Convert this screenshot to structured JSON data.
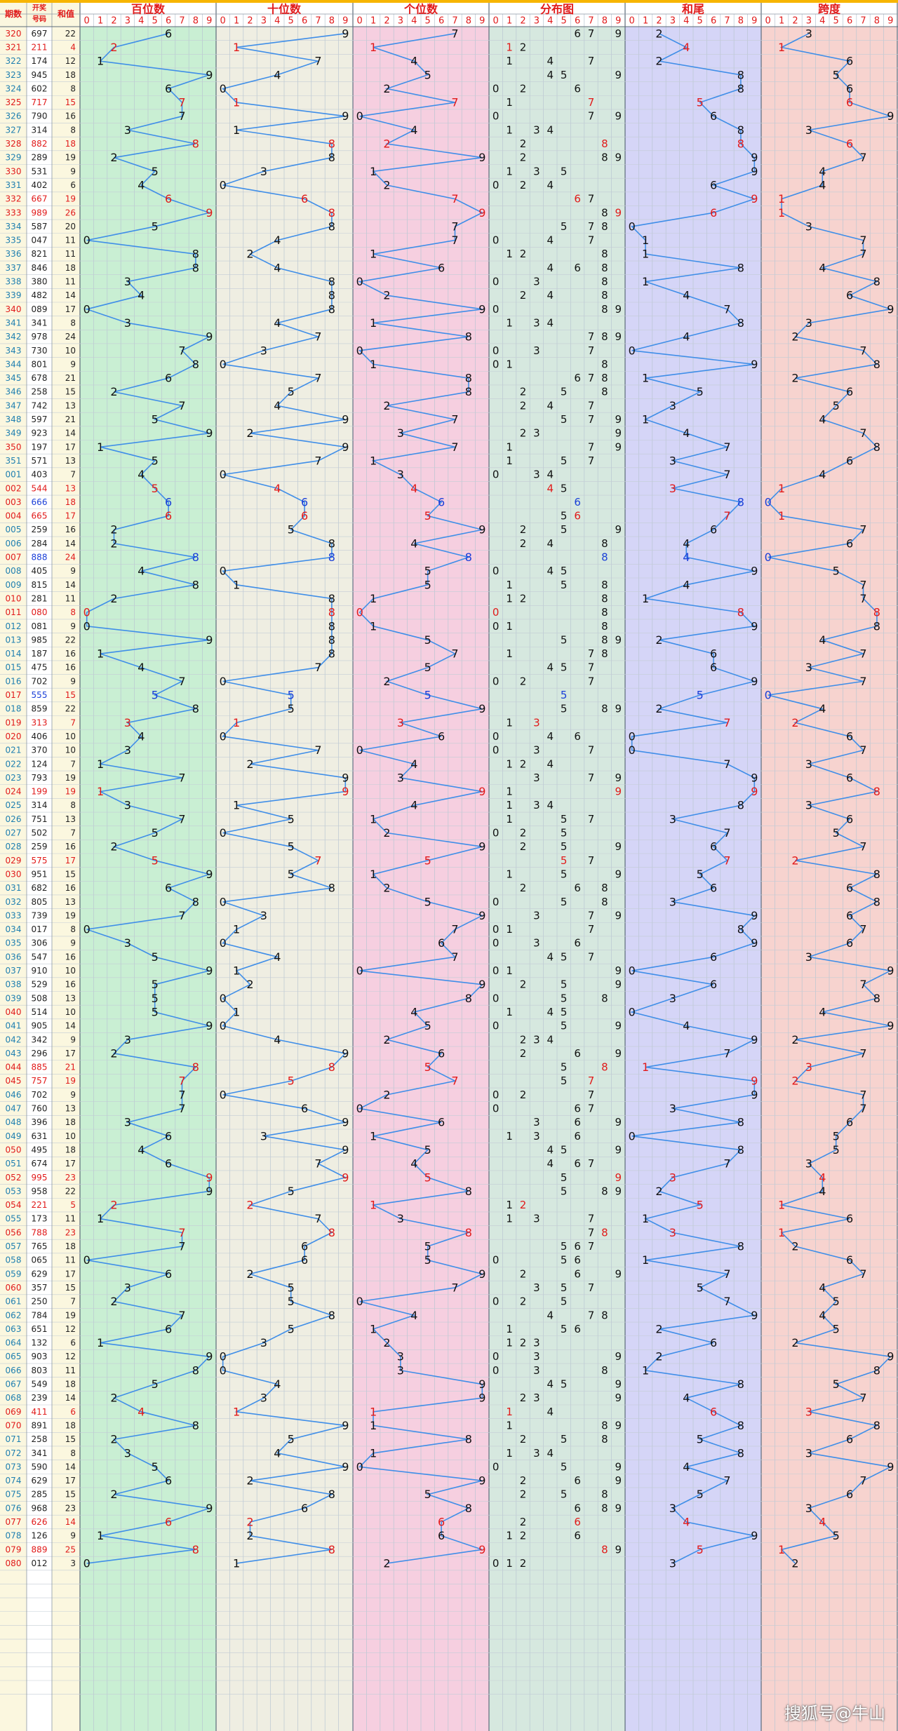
{
  "header": {
    "col_period": "期数",
    "col_draw": "开奖号码",
    "col_sum": "和值",
    "panels": [
      "百位数",
      "十位数",
      "个位数",
      "分布图",
      "和尾",
      "跨度"
    ],
    "digits": [
      "0",
      "1",
      "2",
      "3",
      "4",
      "5",
      "6",
      "7",
      "8",
      "9"
    ]
  },
  "colors": {
    "accent_red": "#e11a1a",
    "line_blue": "#3f8ee8",
    "panel_bgs": [
      "#c9efd3",
      "#efeee2",
      "#f6cfe0",
      "#d6e8df",
      "#d5d5f7",
      "#f7d3cf"
    ],
    "left_bg": "#fbf7df"
  },
  "chart_data": {
    "type": "table",
    "periods": [
      "320",
      "321",
      "322",
      "323",
      "324",
      "325",
      "326",
      "327",
      "328",
      "329",
      "330",
      "331",
      "332",
      "333",
      "334",
      "335",
      "336",
      "337",
      "338",
      "339",
      "340",
      "341",
      "342",
      "343",
      "344",
      "345",
      "346",
      "347",
      "348",
      "349",
      "350",
      "351",
      "001",
      "002",
      "003",
      "004",
      "005",
      "006",
      "007",
      "008",
      "009",
      "010",
      "011",
      "012",
      "013",
      "014",
      "015",
      "016",
      "017",
      "018",
      "019",
      "020",
      "021",
      "022",
      "023",
      "024",
      "025",
      "026",
      "027",
      "028",
      "029",
      "030",
      "031",
      "032",
      "033",
      "034",
      "035",
      "036",
      "037",
      "038",
      "039",
      "040",
      "041",
      "042",
      "043",
      "044",
      "045",
      "046",
      "047",
      "048",
      "049",
      "050",
      "051",
      "052",
      "053",
      "054",
      "055",
      "056",
      "057",
      "058",
      "059",
      "060",
      "061",
      "062",
      "063",
      "064",
      "065",
      "066",
      "067",
      "068",
      "069",
      "070",
      "071",
      "072",
      "073",
      "074",
      "075",
      "076",
      "077",
      "078",
      "079",
      "080"
    ],
    "draws": [
      "697",
      "211",
      "174",
      "945",
      "602",
      "717",
      "790",
      "314",
      "882",
      "289",
      "531",
      "402",
      "667",
      "989",
      "587",
      "047",
      "821",
      "846",
      "380",
      "482",
      "089",
      "341",
      "978",
      "730",
      "801",
      "678",
      "258",
      "742",
      "597",
      "923",
      "197",
      "571",
      "403",
      "544",
      "666",
      "665",
      "259",
      "284",
      "888",
      "405",
      "815",
      "281",
      "080",
      "081",
      "985",
      "187",
      "475",
      "702",
      "555",
      "859",
      "313",
      "406",
      "370",
      "124",
      "793",
      "199",
      "314",
      "751",
      "502",
      "259",
      "575",
      "951",
      "682",
      "805",
      "739",
      "017",
      "306",
      "547",
      "910",
      "529",
      "508",
      "514",
      "905",
      "342",
      "296",
      "885",
      "757",
      "702",
      "760",
      "396",
      "631",
      "495",
      "674",
      "995",
      "958",
      "221",
      "173",
      "788",
      "765",
      "065",
      "629",
      "357",
      "250",
      "784",
      "651",
      "132",
      "903",
      "803",
      "549",
      "239",
      "411",
      "891",
      "258",
      "341",
      "590",
      "629",
      "285",
      "968",
      "626",
      "126",
      "889",
      "012"
    ],
    "sums": [
      22,
      4,
      12,
      18,
      8,
      15,
      16,
      8,
      18,
      19,
      9,
      6,
      19,
      26,
      20,
      11,
      11,
      18,
      11,
      14,
      17,
      8,
      24,
      10,
      9,
      21,
      15,
      13,
      21,
      14,
      17,
      13,
      7,
      13,
      18,
      17,
      16,
      14,
      24,
      9,
      14,
      11,
      8,
      9,
      22,
      16,
      16,
      9,
      15,
      22,
      7,
      10,
      10,
      7,
      19,
      19,
      8,
      13,
      7,
      16,
      17,
      15,
      16,
      13,
      19,
      8,
      9,
      16,
      10,
      16,
      13,
      10,
      14,
      9,
      17,
      21,
      19,
      9,
      13,
      18,
      10,
      18,
      17,
      23,
      22,
      5,
      11,
      23,
      18,
      11,
      17,
      15,
      7,
      19,
      12,
      6,
      12,
      11,
      18,
      14,
      6,
      18,
      15,
      8,
      14,
      17,
      15,
      23,
      14,
      9,
      25,
      3
    ]
  },
  "watermark": "搜狐号@牛山"
}
